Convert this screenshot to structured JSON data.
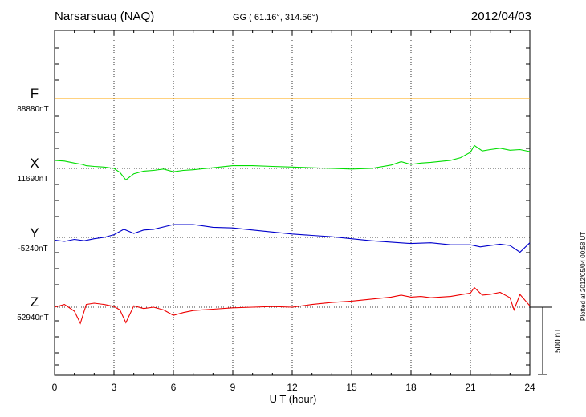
{
  "header": {
    "station": "Narsarsuaq (NAQ)",
    "coords": "GG ( 61.16°, 314.56°)",
    "date": "2012/04/03",
    "plotted": "Plotted at 2012/05/04 00:58 UT"
  },
  "chart_data": {
    "type": "line",
    "xlabel": "U T (hour)",
    "xlim": [
      0,
      24
    ],
    "xticks": [
      "0",
      "3",
      "6",
      "9",
      "12",
      "15",
      "18",
      "21",
      "24"
    ],
    "scale_bar": {
      "label": "500 nT",
      "value_nT": 500
    },
    "grid": "dotted vertical at every 3 hours, dotted baseline per series",
    "series": [
      {
        "name": "F",
        "baseline": "88880nT",
        "color": "#ffa500",
        "unit": "nT offset from baseline",
        "x": [
          0,
          3,
          6,
          9,
          12,
          15,
          18,
          21,
          24
        ],
        "values": [
          0,
          0,
          0,
          0,
          0,
          0,
          0,
          0,
          0
        ]
      },
      {
        "name": "X",
        "baseline": "11690nT",
        "color": "#00dd00",
        "unit": "nT offset from baseline",
        "x": [
          0,
          0.5,
          1.0,
          1.4,
          1.6,
          2.0,
          2.5,
          3.0,
          3.3,
          3.6,
          4.0,
          4.5,
          5.0,
          5.5,
          6.0,
          6.5,
          7.0,
          8.0,
          9.0,
          10.0,
          11.0,
          12.0,
          13.0,
          14.0,
          15.0,
          16.0,
          17.0,
          17.5,
          18.0,
          18.5,
          19.0,
          20.0,
          20.5,
          21.0,
          21.2,
          21.6,
          22.0,
          22.5,
          23.0,
          23.5,
          24.0
        ],
        "values": [
          60,
          55,
          40,
          30,
          20,
          15,
          10,
          0,
          -30,
          -85,
          -40,
          -20,
          -15,
          -5,
          -25,
          -15,
          -10,
          5,
          20,
          20,
          15,
          10,
          5,
          0,
          -5,
          0,
          25,
          50,
          30,
          40,
          45,
          60,
          80,
          120,
          170,
          130,
          140,
          150,
          135,
          140,
          125
        ]
      },
      {
        "name": "Y",
        "baseline": "-5240nT",
        "color": "#0000cc",
        "unit": "nT offset from baseline",
        "x": [
          0,
          0.5,
          1.0,
          1.5,
          2.0,
          2.5,
          3.0,
          3.5,
          4.0,
          4.5,
          5.0,
          6.0,
          7.0,
          8.0,
          9.0,
          10.0,
          11.0,
          12.0,
          13.0,
          14.0,
          15.0,
          16.0,
          17.0,
          18.0,
          19.0,
          20.0,
          21.0,
          21.5,
          22.0,
          22.5,
          23.0,
          23.5,
          24.0
        ],
        "values": [
          -20,
          -30,
          -15,
          -25,
          -10,
          0,
          20,
          60,
          30,
          55,
          60,
          95,
          95,
          75,
          70,
          55,
          40,
          25,
          15,
          5,
          -10,
          -25,
          -35,
          -45,
          -40,
          -55,
          -55,
          -70,
          -60,
          -50,
          -60,
          -110,
          -40
        ]
      },
      {
        "name": "Z",
        "baseline": "52940nT",
        "color": "#ee0000",
        "unit": "nT offset from baseline",
        "x": [
          0,
          0.5,
          1.0,
          1.3,
          1.6,
          2.0,
          2.5,
          3.0,
          3.3,
          3.6,
          4.0,
          4.5,
          5.0,
          5.5,
          6.0,
          6.5,
          7.0,
          8.0,
          9.0,
          10.0,
          11.0,
          12.0,
          13.0,
          14.0,
          15.0,
          16.0,
          17.0,
          17.5,
          18.0,
          18.5,
          19.0,
          20.0,
          21.0,
          21.2,
          21.6,
          22.0,
          22.5,
          23.0,
          23.2,
          23.5,
          24.0
        ],
        "values": [
          0,
          20,
          -30,
          -120,
          20,
          30,
          20,
          5,
          -20,
          -115,
          10,
          -10,
          0,
          -20,
          -60,
          -40,
          -25,
          -15,
          -5,
          0,
          5,
          0,
          20,
          35,
          45,
          60,
          75,
          90,
          75,
          80,
          70,
          80,
          105,
          145,
          90,
          95,
          110,
          70,
          -20,
          95,
          10
        ]
      }
    ]
  }
}
